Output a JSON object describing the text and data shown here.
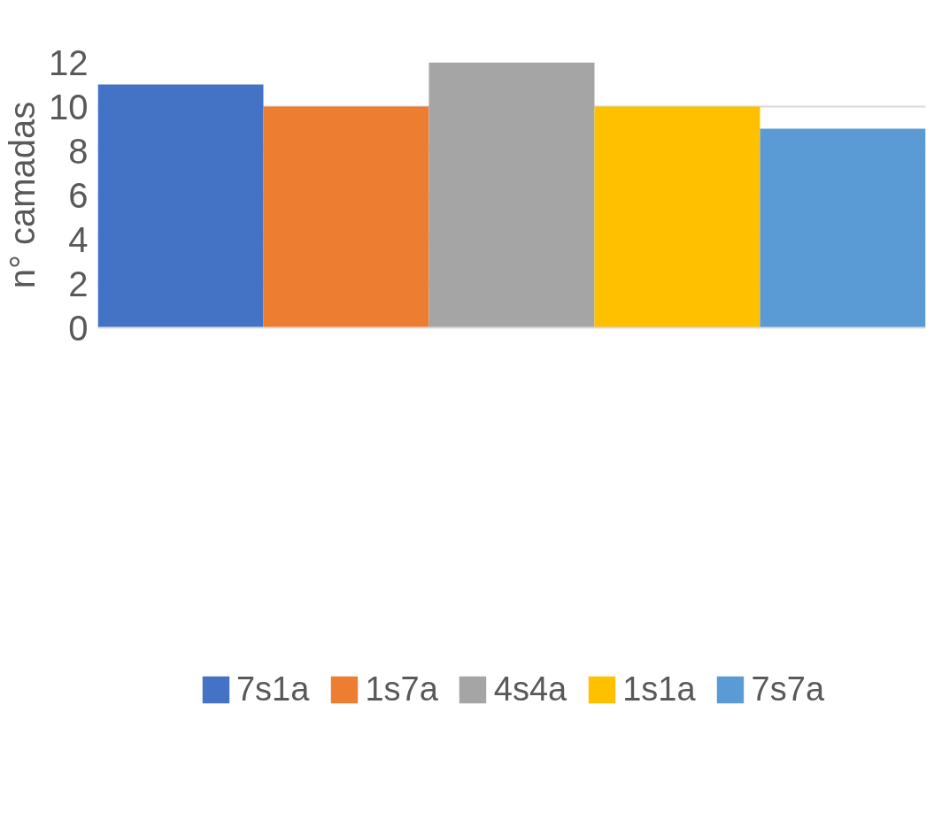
{
  "chart_data": {
    "type": "bar",
    "ylabel": "n° camadas",
    "categories": [
      null
    ],
    "series": [
      {
        "name": "7s1a",
        "color": "#4472c4",
        "values": [
          11
        ]
      },
      {
        "name": "1s7a",
        "color": "#ed7d31",
        "values": [
          10
        ]
      },
      {
        "name": "4s4a",
        "color": "#a5a5a5",
        "values": [
          12
        ]
      },
      {
        "name": "1s1a",
        "color": "#ffc000",
        "values": [
          10
        ]
      },
      {
        "name": "7s7a",
        "color": "#5b9bd5",
        "values": [
          9
        ]
      }
    ],
    "ylim": [
      0,
      12
    ],
    "yticks": [
      0,
      2,
      4,
      6,
      8,
      10,
      12
    ],
    "grid": "y",
    "legend": "bottom"
  }
}
